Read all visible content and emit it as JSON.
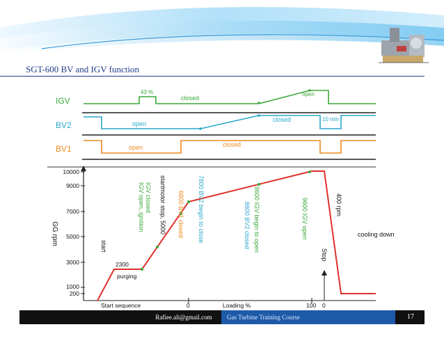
{
  "slide": {
    "title": "SGT-600 BV and IGV function",
    "footer": {
      "email": "Rafiee.ali@gmail.com",
      "course": "Gas Turbine Training Course",
      "page": "17"
    }
  },
  "valves": {
    "igv": {
      "label": "IGV",
      "open_pct": "43 %",
      "closed": "closed",
      "open": "open"
    },
    "bv2": {
      "label": "BV2",
      "open": "open",
      "closed": "closed",
      "time": "10 min"
    },
    "bv1": {
      "label": "BV1",
      "open": "open",
      "closed": "closed"
    }
  },
  "graph": {
    "y_label": "GG rpm",
    "y_ticks": [
      "10000",
      "9000",
      "7000",
      "5000",
      "3000",
      "1000",
      "200"
    ],
    "x_labels": {
      "start_sequence": "Start sequence",
      "zero_a": "0",
      "loading": "Loading %",
      "hundred": "100",
      "zero_b": "0"
    },
    "annotations": {
      "start": "start",
      "rpm_2300": "2300",
      "purging": "purging",
      "ignition": "IGV open, ignition",
      "igv_closed": "IGV closed",
      "starter_stop": "startmotor stop, 5000",
      "bv1_closed": "6800   BV1 closed",
      "bv2_begin_close": "7800   BV2 begin to close",
      "bv2_closed": "8600   BV2 closed",
      "igv_begin_open": "8600   IGV begin to open",
      "igv_open": "9600   IGV open",
      "stop": "Stop",
      "rpm_400": "400 rpm",
      "cooling_down": "cooling down"
    }
  },
  "colors": {
    "title": "#1f3b8c",
    "igv": "#3aa83a",
    "bv2": "#2aa6cc",
    "bv1": "#ee8a1e",
    "curve": "#e0302a",
    "footer_accent": "#1d5aa8"
  }
}
